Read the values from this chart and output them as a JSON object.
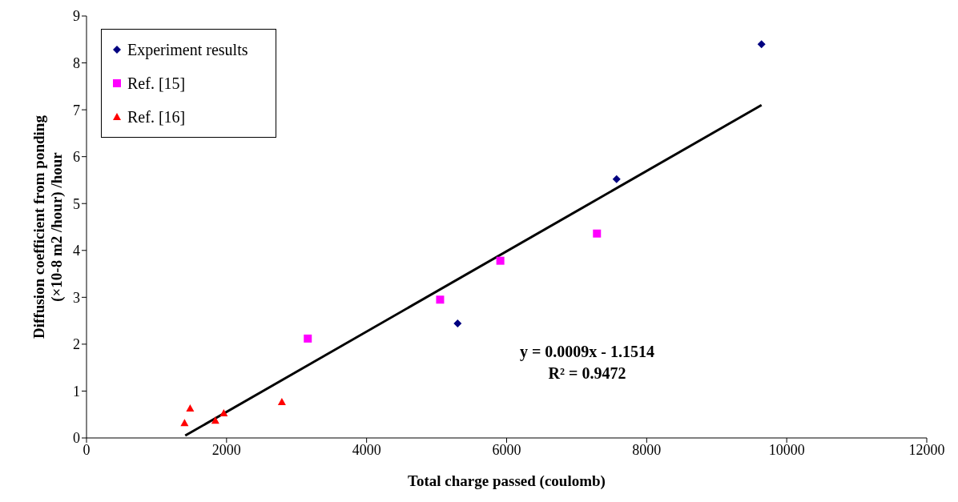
{
  "chart_data": {
    "type": "scatter",
    "xlabel": "Total charge passed (coulomb)",
    "ylabel": "Diffusion coefficient from ponding\n(×10-8 m2 /hour) /hour",
    "xlim": [
      0,
      12000
    ],
    "xticks": [
      0,
      2000,
      4000,
      6000,
      8000,
      10000,
      12000
    ],
    "ylim": [
      0,
      9
    ],
    "yticks": [
      0,
      1,
      2,
      3,
      4,
      5,
      6,
      7,
      8,
      9
    ],
    "legend": "top left",
    "series": [
      {
        "name": "Experiment results",
        "color": "#000080",
        "marker": "diamond",
        "x": [
          5300,
          7570,
          9640
        ],
        "values": [
          2.44,
          5.52,
          8.4
        ]
      },
      {
        "name": "Ref. [15]",
        "color": "#ff00ff",
        "marker": "square",
        "x": [
          3160,
          5050,
          5910,
          7290
        ],
        "values": [
          2.12,
          2.95,
          3.78,
          4.36
        ]
      },
      {
        "name": "Ref. [16]",
        "color": "#ff0000",
        "marker": "triangle",
        "x": [
          1400,
          1480,
          1840,
          1960,
          2790
        ],
        "values": [
          0.32,
          0.63,
          0.37,
          0.53,
          0.77
        ]
      },
      {
        "type": "line",
        "color": "#000000",
        "x": [
          1410,
          9640
        ],
        "values": [
          0.05,
          7.1
        ]
      }
    ],
    "annotations": [
      "y = 0.0009x - 1.1514",
      "R² = 0.9472"
    ]
  }
}
